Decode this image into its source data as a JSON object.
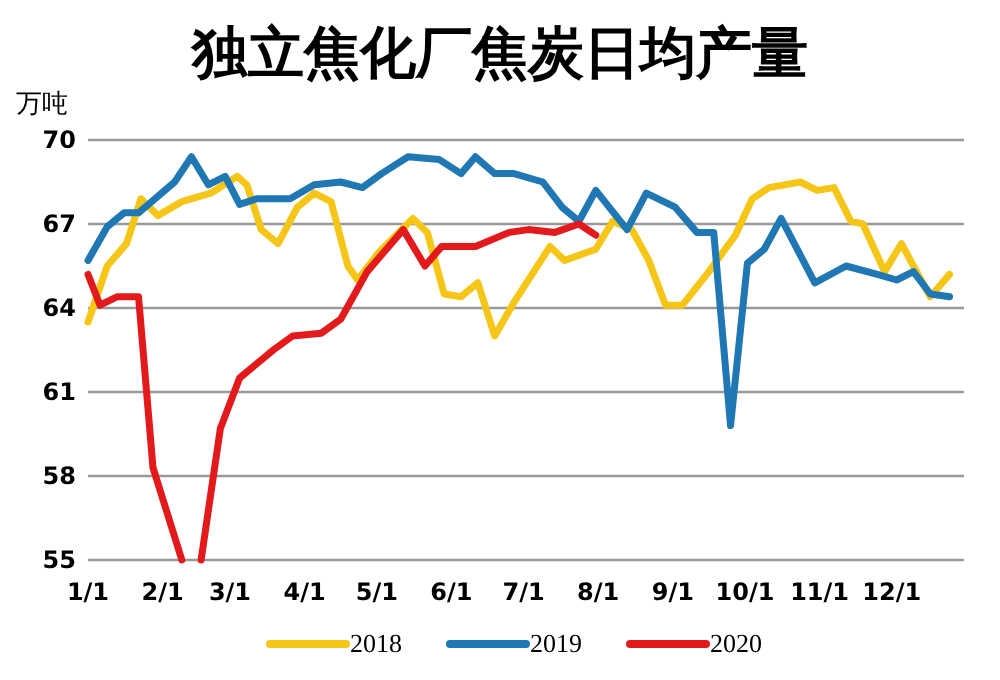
{
  "chart_data": {
    "type": "line",
    "title": "独立焦化厂焦炭日均产量",
    "ylabel": "万吨",
    "xlim": [
      "--01-01",
      "--12-31"
    ],
    "xticks": [
      {
        "value": "--01-01",
        "label": "1/1"
      },
      {
        "value": "--02-01",
        "label": "2/1"
      },
      {
        "value": "--03-01",
        "label": "3/1"
      },
      {
        "value": "--04-01",
        "label": "4/1"
      },
      {
        "value": "--05-01",
        "label": "5/1"
      },
      {
        "value": "--06-01",
        "label": "6/1"
      },
      {
        "value": "--07-01",
        "label": "7/1"
      },
      {
        "value": "--08-01",
        "label": "8/1"
      },
      {
        "value": "--09-01",
        "label": "9/1"
      },
      {
        "value": "--10-01",
        "label": "10/1"
      },
      {
        "value": "--11-01",
        "label": "11/1"
      },
      {
        "value": "--12-01",
        "label": "12/1"
      }
    ],
    "ylim": [
      55,
      70
    ],
    "yticks": [
      55,
      58,
      61,
      64,
      67,
      70
    ],
    "grid": "y",
    "legend": "bottom",
    "line_style": "solid",
    "marker": "none",
    "series": [
      {
        "name": "2018",
        "color": "#f5c518",
        "x": [
          "--01-01",
          "--01-09",
          "--01-17",
          "--01-23",
          "--01-30",
          "--02-09",
          "--02-21",
          "--03-04",
          "--03-08",
          "--03-14",
          "--03-21",
          "--03-29",
          "--04-05",
          "--04-12",
          "--04-19",
          "--04-23",
          "--05-02",
          "--05-16",
          "--05-22",
          "--05-29",
          "--06-05",
          "--06-12",
          "--06-19",
          "--06-27",
          "--07-12",
          "--07-18",
          "--07-31",
          "--08-07",
          "--08-15",
          "--08-22",
          "--08-29",
          "--09-05",
          "--09-16",
          "--09-27",
          "--10-04",
          "--10-11",
          "--10-24",
          "--10-31",
          "--11-07",
          "--11-14",
          "--11-19",
          "--11-28",
          "--12-05",
          "--12-10",
          "--12-17",
          "--12-25"
        ],
        "values": [
          63.5,
          65.5,
          66.3,
          67.9,
          67.3,
          67.8,
          68.1,
          68.7,
          68.4,
          66.8,
          66.3,
          67.6,
          68.1,
          67.8,
          65.5,
          65.0,
          66.0,
          67.2,
          66.7,
          64.5,
          64.4,
          64.9,
          63.0,
          64.2,
          66.2,
          65.7,
          66.1,
          67.1,
          66.8,
          65.7,
          64.1,
          64.1,
          65.3,
          66.6,
          67.9,
          68.3,
          68.5,
          68.2,
          68.3,
          67.1,
          67.0,
          65.3,
          66.3,
          65.5,
          64.4,
          65.2
        ]
      },
      {
        "name": "2019",
        "color": "#1f77b4",
        "x": [
          "--01-01",
          "--01-09",
          "--01-16",
          "--01-22",
          "--02-06",
          "--02-13",
          "--02-20",
          "--02-27",
          "--03-05",
          "--03-12",
          "--03-26",
          "--04-05",
          "--04-16",
          "--04-25",
          "--05-03",
          "--05-14",
          "--05-27",
          "--06-05",
          "--06-11",
          "--06-19",
          "--06-27",
          "--07-09",
          "--07-17",
          "--07-24",
          "--07-31",
          "--08-13",
          "--08-21",
          "--09-02",
          "--09-11",
          "--09-18",
          "--09-25",
          "--10-02",
          "--10-09",
          "--10-16",
          "--10-30",
          "--11-12",
          "--11-25",
          "--12-03",
          "--12-10",
          "--12-17",
          "--12-25"
        ],
        "values": [
          65.7,
          66.9,
          67.4,
          67.4,
          68.5,
          69.4,
          68.4,
          68.7,
          67.7,
          67.9,
          67.9,
          68.4,
          68.5,
          68.3,
          68.8,
          69.4,
          69.3,
          68.8,
          69.4,
          68.8,
          68.8,
          68.5,
          67.6,
          67.1,
          68.2,
          66.8,
          68.1,
          67.6,
          66.7,
          66.7,
          59.8,
          65.6,
          66.1,
          67.2,
          64.9,
          65.5,
          65.2,
          65.0,
          65.3,
          64.5,
          64.4
        ]
      },
      {
        "name": "2020",
        "color": "#e31a1c",
        "x": [
          "--01-01",
          "--01-06",
          "--01-13",
          "--01-22",
          "--01-28",
          "--02-09",
          "--02-13",
          "--02-17",
          "--02-25",
          "--03-05",
          "--03-19",
          "--03-27",
          "--04-08",
          "--04-16",
          "--04-27",
          "--05-12",
          "--05-21",
          "--05-28",
          "--06-11",
          "--06-25",
          "--07-03",
          "--07-14",
          "--07-24",
          "--07-31"
        ],
        "values": [
          65.2,
          64.1,
          64.4,
          64.4,
          58.3,
          55,
          null,
          55,
          59.7,
          61.5,
          62.5,
          63.0,
          63.1,
          63.6,
          65.3,
          66.8,
          65.5,
          66.2,
          66.2,
          66.7,
          66.8,
          66.7,
          67.0,
          66.6
        ]
      }
    ]
  }
}
